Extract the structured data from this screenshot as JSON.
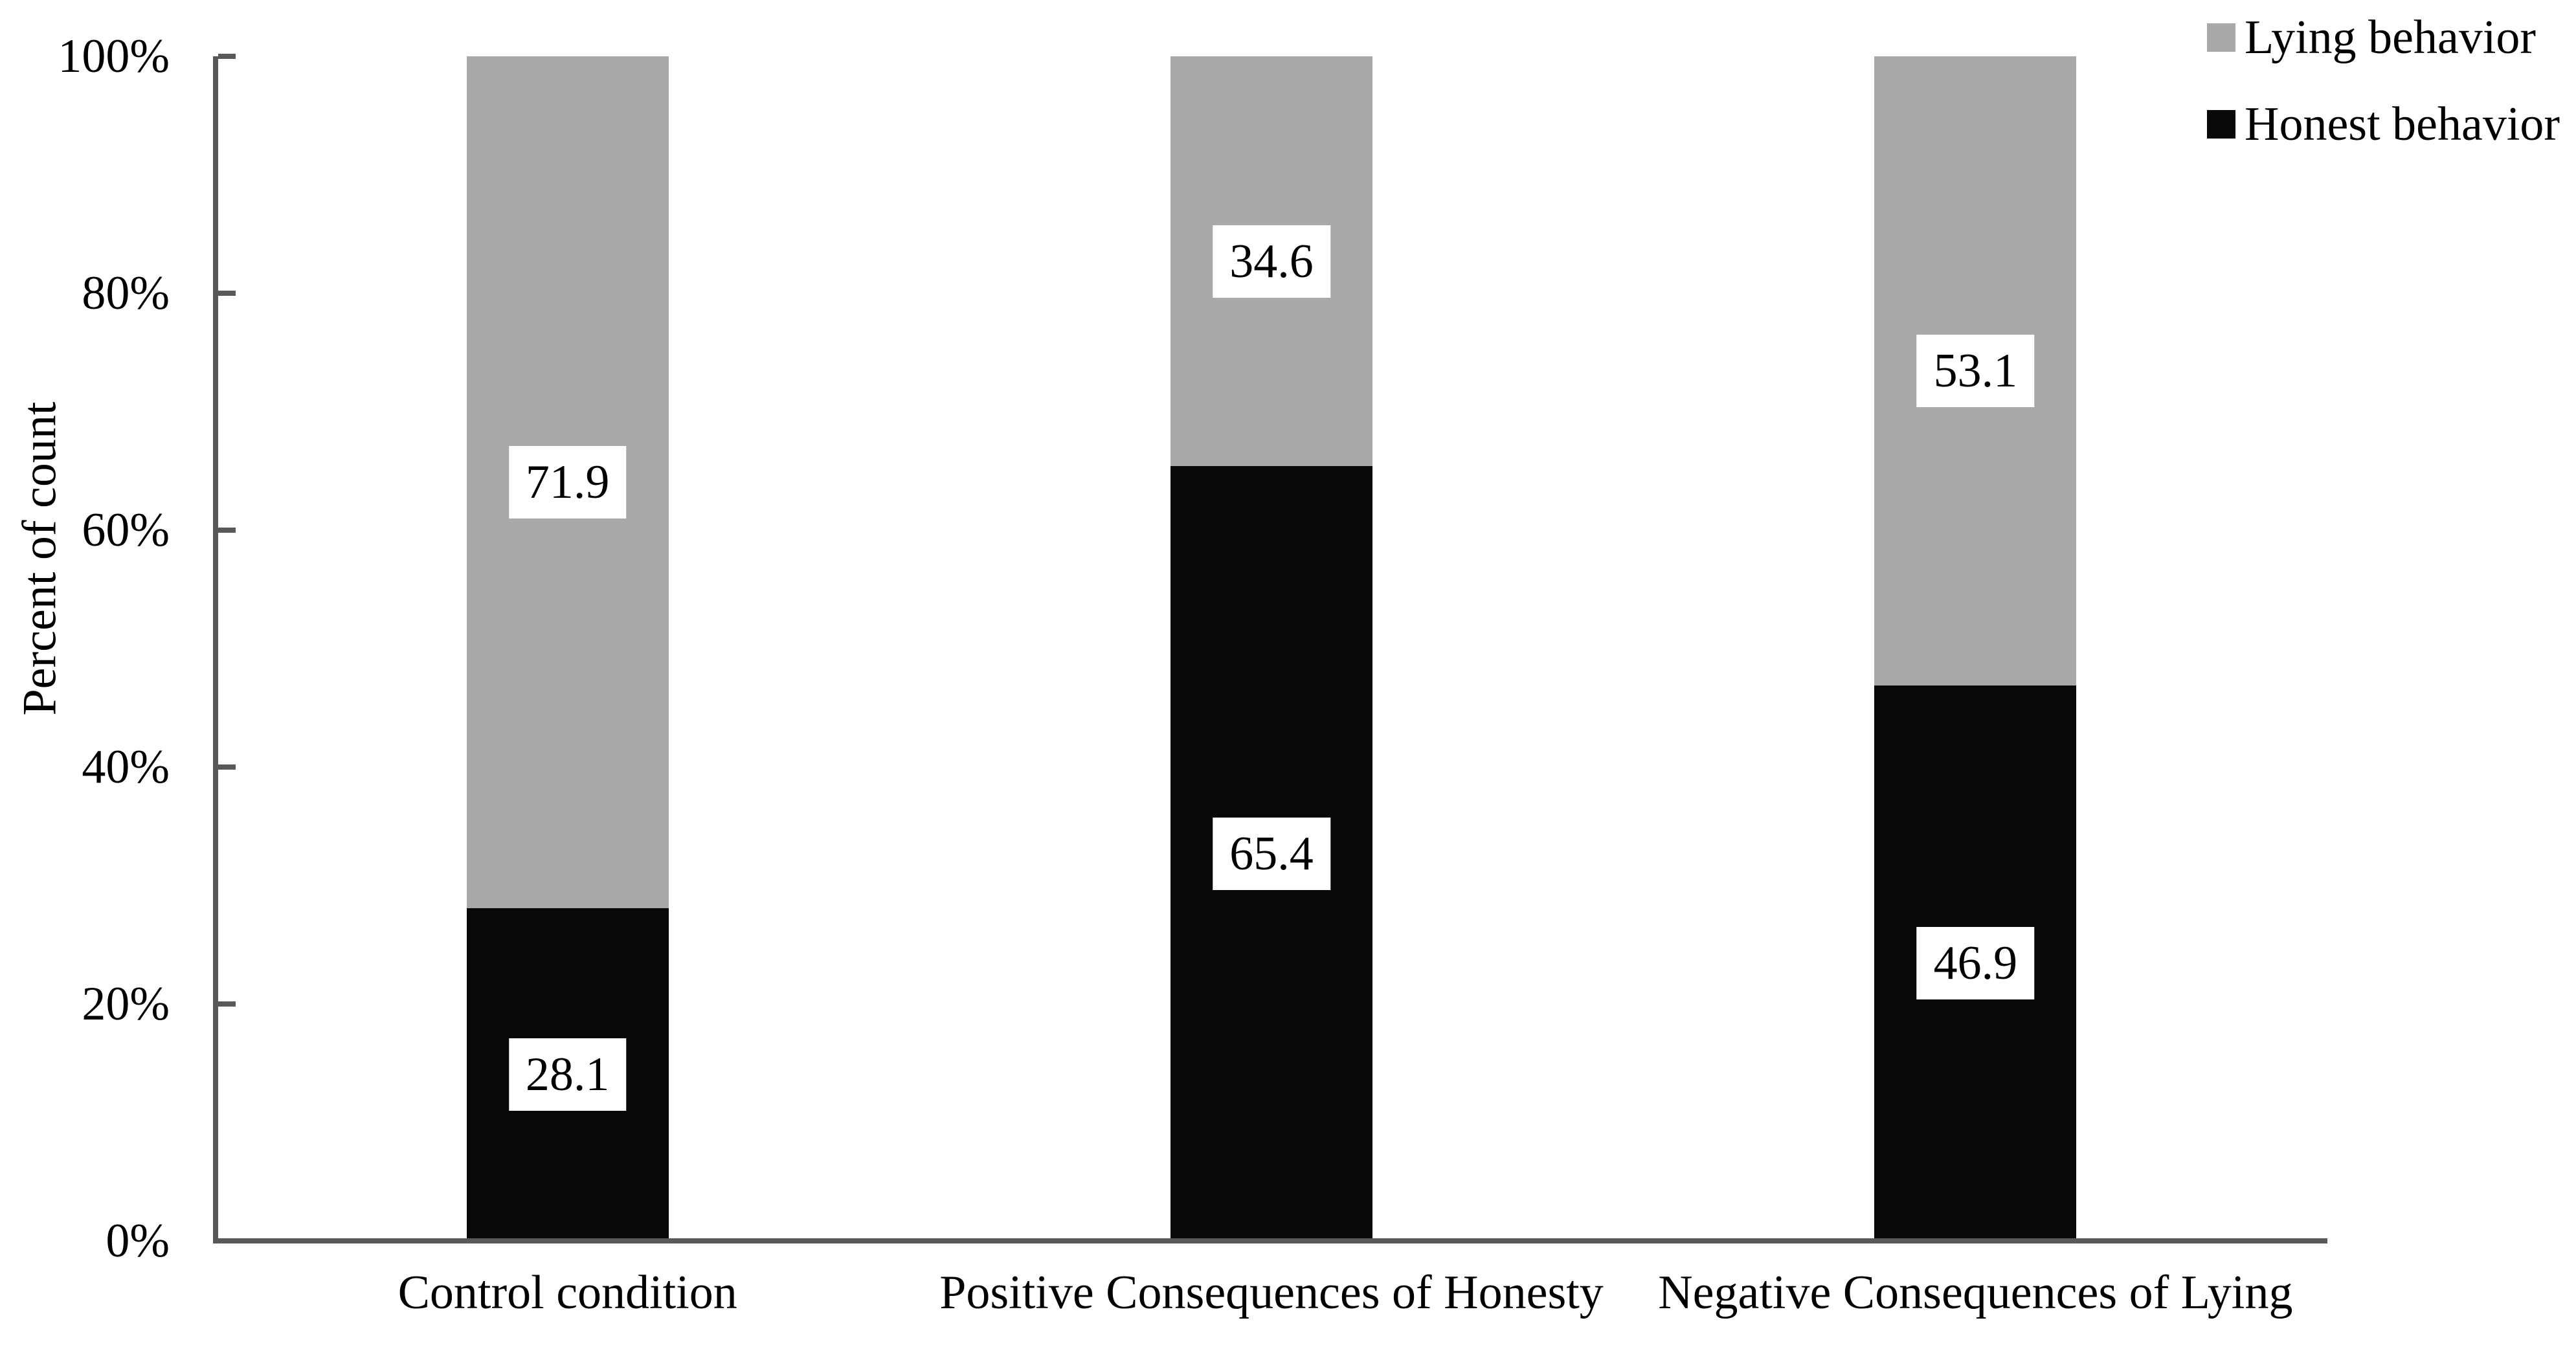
{
  "page": {
    "background": "#ffffff",
    "text_color": "#000000"
  },
  "chart_data": {
    "type": "bar",
    "stacked": true,
    "orientation": "vertical",
    "title": "",
    "xlabel": "",
    "ylabel": "Percent of count",
    "ylim": [
      0,
      100
    ],
    "yticks": [
      0,
      20,
      40,
      60,
      80,
      100
    ],
    "ytick_labels": [
      "0%",
      "20%",
      "40%",
      "60%",
      "80%",
      "100%"
    ],
    "grid": false,
    "axis_color": "#595959",
    "categories": [
      "Control condition",
      "Positive Consequences of Honesty",
      "Negative Consequences of Lying"
    ],
    "series": [
      {
        "name": "Honest behavior",
        "color": "#080808",
        "values": [
          28.1,
          65.4,
          46.9
        ]
      },
      {
        "name": "Lying behavior",
        "color": "#a9a9a9",
        "values": [
          71.9,
          34.6,
          53.1
        ]
      }
    ],
    "data_labels": {
      "show": true,
      "background": "#ffffff",
      "color": "#000000",
      "values_text": [
        [
          "28.1",
          "65.4",
          "46.9"
        ],
        [
          "71.9",
          "34.6",
          "53.1"
        ]
      ]
    },
    "legend": {
      "position": "top-right",
      "items": [
        {
          "label": "Lying behavior",
          "color": "#a9a9a9"
        },
        {
          "label": "Honest behavior",
          "color": "#080808"
        }
      ]
    }
  }
}
